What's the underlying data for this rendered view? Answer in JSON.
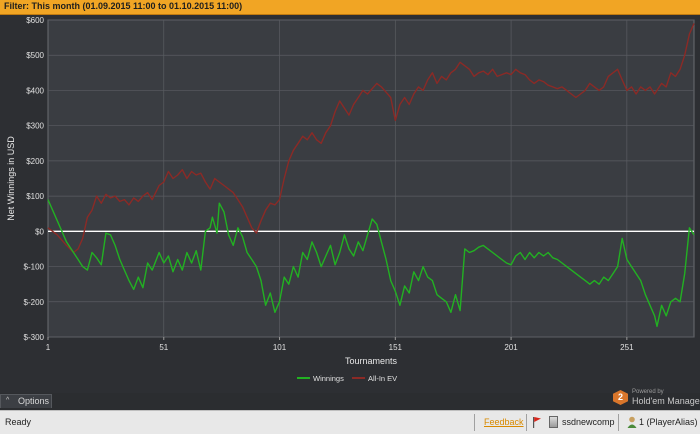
{
  "filter": {
    "label": "Filter: This month (01.09.2015 11:00 to 01.10.2015 11:00)"
  },
  "colors": {
    "winnings": "#22b122",
    "allin_ev": "#8b2a26",
    "zero_line": "#ffffff",
    "grid": "#5a5d62",
    "accent": "#f1a524"
  },
  "chart_data": {
    "type": "line",
    "xlabel": "Tournaments",
    "ylabel": "Net Winnings in USD",
    "x_ticks": [
      1,
      51,
      101,
      151,
      201,
      251
    ],
    "y_ticks": [
      600,
      500,
      400,
      300,
      200,
      100,
      0,
      -100,
      -200,
      -300
    ],
    "y_tick_labels": [
      "$600",
      "$500",
      "$400",
      "$300",
      "$200",
      "$100",
      "$0",
      "$-100",
      "$-200",
      "$-300"
    ],
    "xlim": [
      1,
      280
    ],
    "ylim": [
      -300,
      600
    ],
    "grid": true,
    "legend_position": "bottom-center",
    "series": [
      {
        "name": "Winnings",
        "color": "#22b122",
        "points": [
          [
            1,
            90
          ],
          [
            5,
            30
          ],
          [
            9,
            -30
          ],
          [
            12,
            -60
          ],
          [
            14,
            -80
          ],
          [
            16,
            -100
          ],
          [
            18,
            -110
          ],
          [
            20,
            -60
          ],
          [
            22,
            -75
          ],
          [
            24,
            -95
          ],
          [
            26,
            -5
          ],
          [
            28,
            -10
          ],
          [
            30,
            -40
          ],
          [
            32,
            -80
          ],
          [
            34,
            -110
          ],
          [
            36,
            -140
          ],
          [
            38,
            -165
          ],
          [
            40,
            -130
          ],
          [
            42,
            -160
          ],
          [
            44,
            -90
          ],
          [
            46,
            -110
          ],
          [
            49,
            -60
          ],
          [
            51,
            -90
          ],
          [
            53,
            -70
          ],
          [
            55,
            -115
          ],
          [
            57,
            -80
          ],
          [
            59,
            -110
          ],
          [
            61,
            -60
          ],
          [
            63,
            -90
          ],
          [
            65,
            -55
          ],
          [
            67,
            -110
          ],
          [
            69,
            0
          ],
          [
            71,
            10
          ],
          [
            72,
            40
          ],
          [
            74,
            -5
          ],
          [
            75,
            80
          ],
          [
            77,
            55
          ],
          [
            79,
            -10
          ],
          [
            81,
            -40
          ],
          [
            83,
            10
          ],
          [
            85,
            -15
          ],
          [
            87,
            -60
          ],
          [
            89,
            -80
          ],
          [
            91,
            -100
          ],
          [
            93,
            -140
          ],
          [
            95,
            -210
          ],
          [
            97,
            -175
          ],
          [
            99,
            -230
          ],
          [
            101,
            -200
          ],
          [
            103,
            -130
          ],
          [
            105,
            -150
          ],
          [
            107,
            -100
          ],
          [
            109,
            -130
          ],
          [
            111,
            -60
          ],
          [
            113,
            -80
          ],
          [
            115,
            -30
          ],
          [
            117,
            -60
          ],
          [
            119,
            -100
          ],
          [
            121,
            -70
          ],
          [
            123,
            -40
          ],
          [
            125,
            -95
          ],
          [
            127,
            -60
          ],
          [
            129,
            -10
          ],
          [
            131,
            -50
          ],
          [
            133,
            -70
          ],
          [
            135,
            -30
          ],
          [
            137,
            -55
          ],
          [
            139,
            -10
          ],
          [
            141,
            35
          ],
          [
            143,
            20
          ],
          [
            145,
            -30
          ],
          [
            147,
            -80
          ],
          [
            149,
            -140
          ],
          [
            151,
            -170
          ],
          [
            153,
            -210
          ],
          [
            155,
            -155
          ],
          [
            157,
            -175
          ],
          [
            159,
            -115
          ],
          [
            161,
            -140
          ],
          [
            163,
            -100
          ],
          [
            165,
            -130
          ],
          [
            167,
            -140
          ],
          [
            169,
            -180
          ],
          [
            171,
            -190
          ],
          [
            173,
            -200
          ],
          [
            175,
            -230
          ],
          [
            177,
            -180
          ],
          [
            179,
            -225
          ],
          [
            181,
            -50
          ],
          [
            183,
            -60
          ],
          [
            185,
            -55
          ],
          [
            187,
            -45
          ],
          [
            189,
            -40
          ],
          [
            191,
            -50
          ],
          [
            193,
            -60
          ],
          [
            195,
            -70
          ],
          [
            197,
            -80
          ],
          [
            199,
            -90
          ],
          [
            201,
            -95
          ],
          [
            203,
            -70
          ],
          [
            205,
            -60
          ],
          [
            207,
            -80
          ],
          [
            209,
            -60
          ],
          [
            211,
            -75
          ],
          [
            213,
            -60
          ],
          [
            215,
            -70
          ],
          [
            217,
            -60
          ],
          [
            219,
            -75
          ],
          [
            221,
            -80
          ],
          [
            223,
            -90
          ],
          [
            225,
            -100
          ],
          [
            227,
            -110
          ],
          [
            229,
            -120
          ],
          [
            231,
            -130
          ],
          [
            233,
            -140
          ],
          [
            235,
            -150
          ],
          [
            237,
            -140
          ],
          [
            239,
            -150
          ],
          [
            241,
            -130
          ],
          [
            243,
            -140
          ],
          [
            245,
            -120
          ],
          [
            247,
            -100
          ],
          [
            249,
            -20
          ],
          [
            251,
            -80
          ],
          [
            253,
            -100
          ],
          [
            255,
            -120
          ],
          [
            257,
            -140
          ],
          [
            259,
            -180
          ],
          [
            261,
            -210
          ],
          [
            263,
            -240
          ],
          [
            264,
            -270
          ],
          [
            266,
            -210
          ],
          [
            268,
            -240
          ],
          [
            270,
            -200
          ],
          [
            272,
            -190
          ],
          [
            274,
            -200
          ],
          [
            276,
            -120
          ],
          [
            278,
            10
          ],
          [
            280,
            -10
          ]
        ]
      },
      {
        "name": "All-In EV",
        "color": "#8b2a26",
        "points": [
          [
            1,
            10
          ],
          [
            5,
            -10
          ],
          [
            9,
            -40
          ],
          [
            12,
            -60
          ],
          [
            14,
            -50
          ],
          [
            16,
            -20
          ],
          [
            18,
            40
          ],
          [
            20,
            60
          ],
          [
            22,
            100
          ],
          [
            24,
            80
          ],
          [
            26,
            105
          ],
          [
            28,
            95
          ],
          [
            30,
            100
          ],
          [
            32,
            85
          ],
          [
            34,
            90
          ],
          [
            36,
            75
          ],
          [
            38,
            95
          ],
          [
            40,
            85
          ],
          [
            42,
            100
          ],
          [
            44,
            110
          ],
          [
            46,
            90
          ],
          [
            49,
            130
          ],
          [
            51,
            140
          ],
          [
            53,
            170
          ],
          [
            55,
            150
          ],
          [
            57,
            160
          ],
          [
            59,
            175
          ],
          [
            61,
            150
          ],
          [
            63,
            170
          ],
          [
            65,
            160
          ],
          [
            67,
            165
          ],
          [
            69,
            140
          ],
          [
            71,
            120
          ],
          [
            73,
            150
          ],
          [
            75,
            140
          ],
          [
            77,
            130
          ],
          [
            79,
            120
          ],
          [
            81,
            110
          ],
          [
            83,
            90
          ],
          [
            85,
            70
          ],
          [
            87,
            40
          ],
          [
            89,
            10
          ],
          [
            91,
            -5
          ],
          [
            93,
            30
          ],
          [
            95,
            60
          ],
          [
            97,
            80
          ],
          [
            99,
            75
          ],
          [
            101,
            90
          ],
          [
            103,
            150
          ],
          [
            105,
            200
          ],
          [
            107,
            230
          ],
          [
            109,
            250
          ],
          [
            111,
            270
          ],
          [
            113,
            260
          ],
          [
            115,
            280
          ],
          [
            117,
            260
          ],
          [
            119,
            250
          ],
          [
            121,
            280
          ],
          [
            123,
            300
          ],
          [
            125,
            340
          ],
          [
            127,
            370
          ],
          [
            129,
            350
          ],
          [
            131,
            330
          ],
          [
            133,
            360
          ],
          [
            135,
            380
          ],
          [
            137,
            400
          ],
          [
            139,
            390
          ],
          [
            141,
            405
          ],
          [
            143,
            420
          ],
          [
            145,
            410
          ],
          [
            147,
            395
          ],
          [
            149,
            380
          ],
          [
            151,
            315
          ],
          [
            153,
            360
          ],
          [
            155,
            380
          ],
          [
            157,
            360
          ],
          [
            159,
            390
          ],
          [
            161,
            410
          ],
          [
            163,
            400
          ],
          [
            165,
            430
          ],
          [
            167,
            450
          ],
          [
            169,
            420
          ],
          [
            171,
            440
          ],
          [
            173,
            430
          ],
          [
            175,
            450
          ],
          [
            177,
            460
          ],
          [
            179,
            480
          ],
          [
            181,
            470
          ],
          [
            183,
            460
          ],
          [
            185,
            440
          ],
          [
            187,
            450
          ],
          [
            189,
            455
          ],
          [
            191,
            445
          ],
          [
            193,
            460
          ],
          [
            195,
            440
          ],
          [
            197,
            445
          ],
          [
            199,
            450
          ],
          [
            201,
            445
          ],
          [
            203,
            460
          ],
          [
            205,
            450
          ],
          [
            207,
            445
          ],
          [
            209,
            430
          ],
          [
            211,
            420
          ],
          [
            213,
            430
          ],
          [
            215,
            425
          ],
          [
            217,
            415
          ],
          [
            219,
            410
          ],
          [
            221,
            405
          ],
          [
            223,
            410
          ],
          [
            225,
            400
          ],
          [
            227,
            390
          ],
          [
            229,
            380
          ],
          [
            231,
            390
          ],
          [
            233,
            400
          ],
          [
            235,
            420
          ],
          [
            237,
            410
          ],
          [
            239,
            400
          ],
          [
            241,
            410
          ],
          [
            243,
            440
          ],
          [
            245,
            450
          ],
          [
            247,
            460
          ],
          [
            249,
            430
          ],
          [
            251,
            400
          ],
          [
            253,
            410
          ],
          [
            255,
            390
          ],
          [
            257,
            410
          ],
          [
            259,
            400
          ],
          [
            261,
            410
          ],
          [
            263,
            390
          ],
          [
            264,
            400
          ],
          [
            266,
            420
          ],
          [
            268,
            410
          ],
          [
            270,
            450
          ],
          [
            272,
            440
          ],
          [
            274,
            460
          ],
          [
            276,
            500
          ],
          [
            278,
            560
          ],
          [
            280,
            590
          ]
        ]
      }
    ]
  },
  "options": {
    "label": "Options",
    "chevron": "^"
  },
  "brand": {
    "powered": "Powered by",
    "name": "Hold'em Manager"
  },
  "status": {
    "ready": "Ready",
    "feedback": "Feedback",
    "database": "ssdnewcomp",
    "player": "1 (PlayerAlias)"
  },
  "icons": {
    "flag": "flag-icon",
    "database": "database-icon",
    "player": "player-icon",
    "brand": "brand-logo-icon"
  }
}
